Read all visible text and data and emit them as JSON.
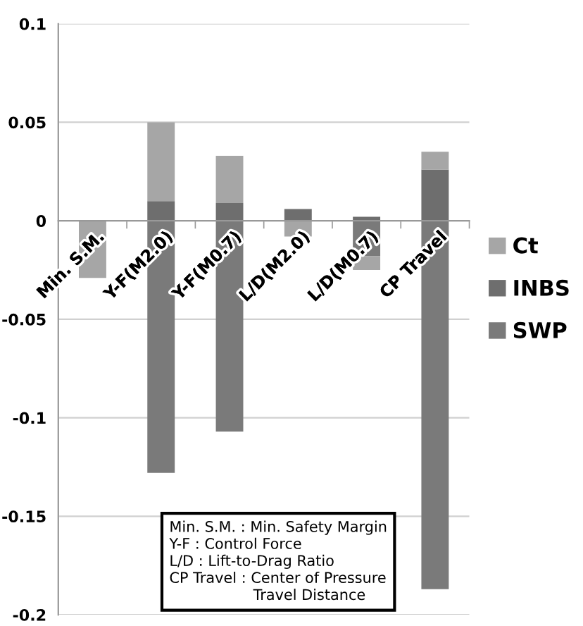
{
  "chart_data": {
    "type": "bar",
    "categories": [
      "Min. S.M.",
      "Y-F(M2.0)",
      "Y-F(M0.7)",
      "L/D(M2.0)",
      "L/D(M0.7)",
      "CP Travel"
    ],
    "series": [
      {
        "name": "SWP",
        "color": "#7a7a7a",
        "values": [
          null,
          -0.128,
          -0.107,
          null,
          -0.018,
          -0.187
        ]
      },
      {
        "name": "INBS",
        "color": "#6e6e6e",
        "values": [
          null,
          0.01,
          0.009,
          0.006,
          0.002,
          0.026
        ]
      },
      {
        "name": "Ct",
        "color": "#a6a6a6",
        "values": [
          -0.029,
          0.04,
          0.024,
          -0.008,
          -0.007,
          0.009
        ]
      }
    ],
    "stacked": true,
    "ylim": [
      -0.2,
      0.1
    ],
    "yticks": [
      -0.2,
      -0.15,
      -0.1,
      -0.05,
      0,
      0.05,
      0.1
    ],
    "grid": "y",
    "legend": "right",
    "annotations": [
      "Min. S.M. : Min. Safety Margin\nY-F : Control Force\nL/D : Lift-to-Drag Ratio\nCP Travel : Center of Pressure\n                  Travel Distance"
    ]
  }
}
